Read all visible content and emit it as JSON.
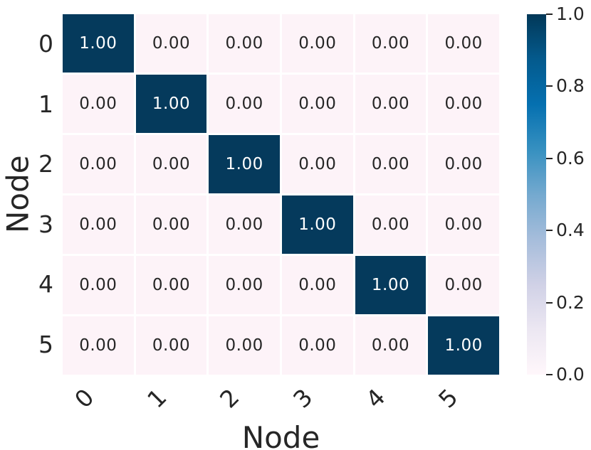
{
  "chart_data": {
    "type": "heatmap",
    "title": "",
    "xlabel": "Node",
    "ylabel": "Node",
    "x_ticklabels": [
      "0",
      "1",
      "2",
      "3",
      "4",
      "5"
    ],
    "y_ticklabels": [
      "0",
      "1",
      "2",
      "3",
      "4",
      "5"
    ],
    "values": [
      [
        1.0,
        0.0,
        0.0,
        0.0,
        0.0,
        0.0
      ],
      [
        0.0,
        1.0,
        0.0,
        0.0,
        0.0,
        0.0
      ],
      [
        0.0,
        0.0,
        1.0,
        0.0,
        0.0,
        0.0
      ],
      [
        0.0,
        0.0,
        0.0,
        1.0,
        0.0,
        0.0
      ],
      [
        0.0,
        0.0,
        0.0,
        0.0,
        1.0,
        0.0
      ],
      [
        0.0,
        0.0,
        0.0,
        0.0,
        0.0,
        1.0
      ]
    ],
    "annotations": true,
    "annotation_format": ".2f",
    "vmin": 0.0,
    "vmax": 1.0,
    "colormap": "PuBu",
    "legend_position": "colorbar-right",
    "colorbar_ticklabels": [
      "1.0",
      "0.8",
      "0.6",
      "0.4",
      "0.2",
      "0.0"
    ],
    "colorbar_tick_values": [
      1.0,
      0.8,
      0.6,
      0.4,
      0.2,
      0.0
    ]
  },
  "style": {
    "cell_high_color": "#053a5c",
    "cell_low_color": "#fdf3f8",
    "annot_dark_color": "#262626",
    "annot_light_color": "#ffffff",
    "tick_color": "#262626",
    "gridline_color": "#ffffff",
    "colorbar_gradient": [
      "#fff7fb",
      "#ece7f2",
      "#d0d1e6",
      "#a6bddb",
      "#74a9cf",
      "#3690c0",
      "#0570b0",
      "#045a8d",
      "#023858"
    ]
  }
}
